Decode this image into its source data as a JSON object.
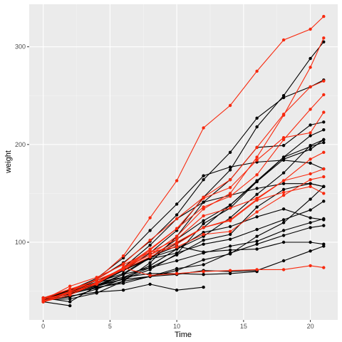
{
  "chart_data": {
    "type": "line",
    "xlabel": "Time",
    "ylabel": "weight",
    "xlim": [
      -1.05,
      22.05
    ],
    "ylim": [
      20.5,
      343.5
    ],
    "x_ticks": [
      0,
      5,
      10,
      15,
      20
    ],
    "y_ticks": [
      100,
      200,
      300
    ],
    "grid": true,
    "legend": "none",
    "colors": {
      "panel": "#ebebeb",
      "grid_major": "#ffffff",
      "grid_minor": "#f5f5f5",
      "series_a": "#000000",
      "series_b": "#f8290e"
    },
    "series": [
      {
        "group": "black",
        "x": [
          0,
          2,
          4,
          6,
          8,
          10,
          12,
          14,
          16,
          18,
          20,
          21
        ],
        "values": [
          42,
          51,
          59,
          64,
          76,
          93,
          106,
          125,
          149,
          171,
          199,
          205
        ]
      },
      {
        "group": "black",
        "x": [
          0,
          2,
          4,
          6,
          8,
          10,
          12,
          14,
          16,
          18,
          20,
          21
        ],
        "values": [
          40,
          49,
          58,
          72,
          84,
          103,
          122,
          138,
          162,
          187,
          209,
          215
        ]
      },
      {
        "group": "black",
        "x": [
          0,
          2,
          4,
          6,
          8,
          10,
          12,
          14,
          16,
          18,
          20,
          21
        ],
        "values": [
          43,
          39,
          55,
          67,
          84,
          99,
          115,
          138,
          163,
          187,
          198,
          202
        ]
      },
      {
        "group": "black",
        "x": [
          0,
          2,
          4,
          6,
          8,
          10,
          12,
          14,
          16,
          18,
          20,
          21
        ],
        "values": [
          42,
          49,
          56,
          67,
          74,
          87,
          102,
          108,
          136,
          154,
          160,
          157
        ]
      },
      {
        "group": "black",
        "x": [
          0,
          2,
          4,
          6,
          8,
          10,
          12,
          14,
          16,
          18,
          20,
          21
        ],
        "values": [
          41,
          42,
          48,
          60,
          79,
          106,
          141,
          164,
          197,
          199,
          220,
          223
        ]
      },
      {
        "group": "black",
        "x": [
          0,
          2,
          4,
          6,
          8,
          10,
          12,
          14,
          16,
          18,
          20,
          21
        ],
        "values": [
          41,
          49,
          59,
          74,
          97,
          124,
          141,
          148,
          155,
          160,
          160,
          157
        ]
      },
      {
        "group": "black",
        "x": [
          0,
          2,
          4,
          6,
          8,
          10,
          12,
          14,
          16,
          18,
          20,
          21
        ],
        "values": [
          41,
          49,
          57,
          71,
          89,
          112,
          146,
          174,
          218,
          250,
          288,
          305
        ]
      },
      {
        "group": "black",
        "x": [
          0,
          2,
          4,
          6,
          8,
          10,
          12,
          14,
          16,
          18,
          20,
          21
        ],
        "values": [
          42,
          50,
          61,
          71,
          84,
          93,
          110,
          116,
          126,
          134,
          125,
          123
        ]
      },
      {
        "group": "black",
        "x": [
          0,
          2,
          4,
          6,
          8,
          10,
          12,
          14,
          16,
          18,
          20,
          21
        ],
        "values": [
          42,
          51,
          59,
          68,
          85,
          96,
          90,
          92,
          93,
          100,
          100,
          98
        ]
      },
      {
        "group": "black",
        "x": [
          0,
          2,
          4,
          6,
          8,
          10,
          12,
          14,
          16,
          18,
          20,
          21
        ],
        "values": [
          41,
          44,
          52,
          63,
          74,
          81,
          89,
          96,
          101,
          112,
          120,
          124
        ]
      },
      {
        "group": "black",
        "x": [
          0,
          2,
          4,
          6,
          8,
          10,
          12,
          14,
          16,
          18,
          20,
          21
        ],
        "values": [
          43,
          51,
          63,
          84,
          112,
          139,
          168,
          177,
          182,
          184,
          181,
          175
        ]
      },
      {
        "group": "black",
        "x": [
          0,
          2,
          4,
          6,
          8,
          10,
          12,
          14,
          16,
          18,
          20,
          21
        ],
        "values": [
          41,
          49,
          56,
          62,
          72,
          88,
          119,
          135,
          162,
          185,
          195,
          205
        ]
      },
      {
        "group": "black",
        "x": [
          0,
          2,
          4,
          6,
          8,
          10,
          12,
          14,
          16,
          18,
          20,
          21
        ],
        "values": [
          41,
          48,
          53,
          60,
          65,
          67,
          71,
          70,
          71,
          81,
          91,
          96
        ]
      },
      {
        "group": "black",
        "x": [
          0,
          2,
          4,
          6,
          8,
          10,
          12,
          14,
          16,
          18,
          20,
          21
        ],
        "values": [
          41,
          49,
          62,
          79,
          101,
          128,
          164,
          192,
          227,
          248,
          259,
          266
        ]
      },
      {
        "group": "black",
        "x": [
          0,
          2,
          4,
          6,
          8,
          10,
          12,
          14,
          16
        ],
        "values": [
          41,
          49,
          56,
          64,
          68,
          68,
          67,
          68,
          70
        ]
      },
      {
        "group": "black",
        "x": [
          0,
          2,
          4,
          6,
          8,
          10,
          12
        ],
        "values": [
          41,
          45,
          49,
          51,
          57,
          51,
          54
        ]
      },
      {
        "group": "black",
        "x": [
          0,
          2,
          4,
          6,
          8,
          10,
          12,
          14,
          16,
          18,
          20,
          21
        ],
        "values": [
          42,
          51,
          61,
          72,
          83,
          89,
          98,
          103,
          113,
          123,
          133,
          142
        ]
      },
      {
        "group": "black",
        "x": [
          0,
          2
        ],
        "values": [
          39,
          35
        ]
      },
      {
        "group": "black",
        "x": [
          0,
          2,
          4,
          6,
          8,
          10,
          12,
          14,
          16,
          18,
          20,
          21
        ],
        "values": [
          43,
          48,
          55,
          62,
          65,
          71,
          82,
          88,
          106,
          120,
          144,
          157
        ]
      },
      {
        "group": "black",
        "x": [
          0,
          2,
          4,
          6,
          8,
          10,
          12,
          14,
          16,
          18,
          20,
          21
        ],
        "values": [
          41,
          47,
          54,
          58,
          65,
          73,
          77,
          89,
          98,
          107,
          115,
          117
        ]
      },
      {
        "group": "red",
        "x": [
          0,
          2,
          4,
          6,
          8,
          10,
          12,
          14,
          16,
          18,
          20,
          21
        ],
        "values": [
          40,
          50,
          62,
          86,
          125,
          163,
          217,
          240,
          275,
          307,
          318,
          331
        ]
      },
      {
        "group": "red",
        "x": [
          0,
          2,
          4,
          6,
          8,
          10,
          12,
          14,
          16,
          18,
          20,
          21
        ],
        "values": [
          41,
          55,
          64,
          77,
          90,
          95,
          108,
          111,
          131,
          148,
          164,
          167
        ]
      },
      {
        "group": "red",
        "x": [
          0,
          2,
          4,
          6,
          8,
          10,
          12,
          14,
          16,
          18,
          20,
          21
        ],
        "values": [
          43,
          52,
          61,
          73,
          90,
          103,
          127,
          135,
          145,
          163,
          170,
          175
        ]
      },
      {
        "group": "red",
        "x": [
          0,
          2,
          4,
          6,
          8,
          10,
          12,
          14,
          16,
          18,
          20,
          21
        ],
        "values": [
          42,
          52,
          58,
          74,
          66,
          68,
          70,
          71,
          72,
          72,
          76,
          74
        ]
      },
      {
        "group": "red",
        "x": [
          0,
          2,
          4,
          6,
          8,
          10,
          12,
          14,
          16,
          18,
          20,
          21
        ],
        "values": [
          40,
          49,
          62,
          78,
          102,
          124,
          146,
          164,
          197,
          231,
          259,
          265
        ]
      },
      {
        "group": "red",
        "x": [
          0,
          2,
          4,
          6,
          8,
          10,
          12,
          14,
          16,
          18,
          20,
          21
        ],
        "values": [
          42,
          48,
          57,
          74,
          93,
          114,
          136,
          147,
          169,
          205,
          236,
          251
        ]
      },
      {
        "group": "red",
        "x": [
          0,
          2,
          4,
          6,
          8,
          10,
          12,
          14,
          16,
          18,
          20,
          21
        ],
        "values": [
          39,
          46,
          58,
          73,
          87,
          100,
          115,
          123,
          144,
          163,
          185,
          192
        ]
      },
      {
        "group": "red",
        "x": [
          0,
          2,
          4,
          6,
          8,
          10,
          12,
          14,
          16,
          18,
          20,
          21
        ],
        "values": [
          39,
          46,
          58,
          73,
          92,
          114,
          145,
          156,
          184,
          207,
          212,
          233
        ]
      },
      {
        "group": "red",
        "x": [
          0,
          2,
          4,
          6,
          8,
          10,
          12,
          14,
          16,
          18,
          20,
          21
        ],
        "values": [
          39,
          48,
          59,
          74,
          87,
          106,
          134,
          150,
          187,
          230,
          279,
          309
        ]
      },
      {
        "group": "red",
        "x": [
          0,
          2,
          4,
          6,
          8,
          10,
          12,
          14,
          16,
          18,
          20,
          21
        ],
        "values": [
          42,
          48,
          59,
          72,
          85,
          98,
          115,
          122,
          143,
          151,
          157,
          150
        ]
      }
    ]
  }
}
